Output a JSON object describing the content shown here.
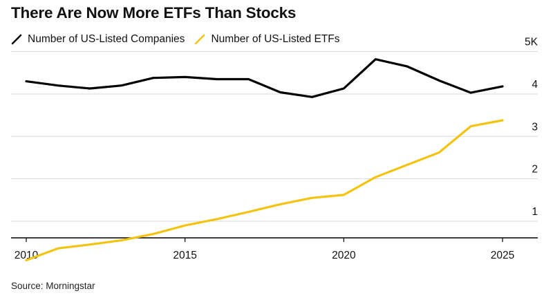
{
  "chart_data": {
    "type": "line",
    "title": "There Are Now More ETFs Than Stocks",
    "source": "Source: Morningstar",
    "x": [
      2010,
      2011,
      2012,
      2013,
      2014,
      2015,
      2016,
      2017,
      2018,
      2019,
      2020,
      2021,
      2022,
      2023,
      2024,
      2025
    ],
    "series": [
      {
        "name": "Number of US-Listed Companies",
        "color": "#000000",
        "values": [
          4300,
          4200,
          4130,
          4200,
          4380,
          4400,
          4350,
          4350,
          4040,
          3930,
          4130,
          4820,
          4650,
          4320,
          4030,
          4180
        ]
      },
      {
        "name": "Number of US-Listed ETFs",
        "color": "#f2c40f",
        "values": [
          80,
          360,
          450,
          550,
          700,
          900,
          1050,
          1220,
          1400,
          1550,
          1620,
          2040,
          2330,
          2620,
          3240,
          3380
        ]
      }
    ],
    "x_ticks": [
      "2010",
      "2015",
      "2020",
      "2025"
    ],
    "y_ticks": [
      "1",
      "2",
      "3",
      "4",
      "5K"
    ],
    "ylim": [
      0,
      5500
    ],
    "grid": "horizontal",
    "legend_position": "top-left",
    "y_axis_side": "right"
  }
}
